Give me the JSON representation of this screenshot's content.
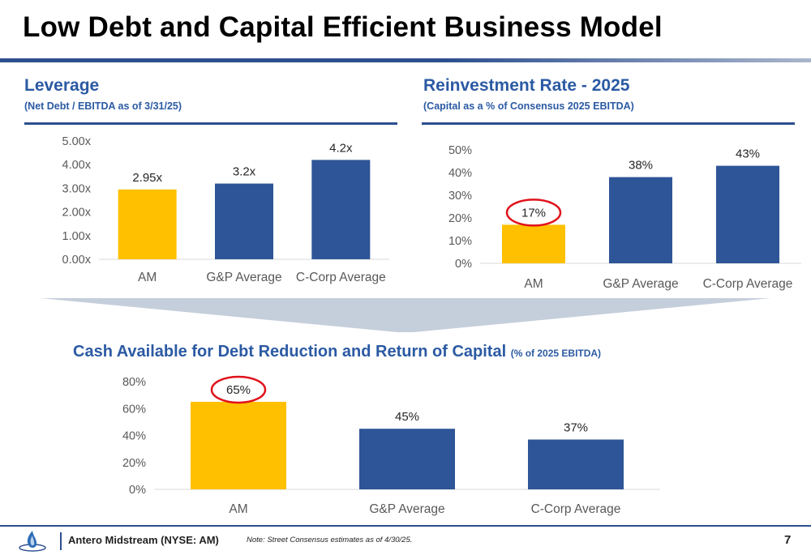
{
  "title": "Low Debt and Capital Efficient Business Model",
  "chart_data": [
    {
      "type": "bar",
      "title": "Leverage",
      "subtitle": "(Net Debt / EBITDA as of 3/31/25)",
      "categories": [
        "AM",
        "G&P Average",
        "C-Corp Average"
      ],
      "values": [
        2.95,
        3.2,
        4.2
      ],
      "data_labels": [
        "2.95x",
        "3.2x",
        "4.2x"
      ],
      "yticks": [
        "0.00x",
        "1.00x",
        "2.00x",
        "3.00x",
        "4.00x",
        "5.00x"
      ],
      "ylim": [
        0,
        5
      ],
      "highlight_index": -1,
      "grid": false
    },
    {
      "type": "bar",
      "title": "Reinvestment Rate - 2025",
      "subtitle": "(Capital as a % of Consensus 2025 EBITDA)",
      "categories": [
        "AM",
        "G&P Average",
        "C-Corp Average"
      ],
      "values": [
        17,
        38,
        43
      ],
      "data_labels": [
        "17%",
        "38%",
        "43%"
      ],
      "yticks": [
        "0%",
        "10%",
        "20%",
        "30%",
        "40%",
        "50%"
      ],
      "ylim": [
        0,
        50
      ],
      "highlight_index": 0,
      "grid": false
    },
    {
      "type": "bar",
      "title": "Cash Available for Debt Reduction and Return of Capital",
      "subtitle": "(% of 2025 EBITDA)",
      "categories": [
        "AM",
        "G&P Average",
        "C-Corp Average"
      ],
      "values": [
        65,
        45,
        37
      ],
      "data_labels": [
        "65%",
        "45%",
        "37%"
      ],
      "yticks": [
        "0%",
        "20%",
        "40%",
        "60%",
        "80%"
      ],
      "ylim": [
        0,
        80
      ],
      "highlight_index": 0,
      "grid": false
    }
  ],
  "colors": {
    "am_bar": "#ffc000",
    "peer_bar": "#2e5597",
    "highlight_circle": "#e0121b",
    "title_blue": "#2b5aa3",
    "funnel": "#c5cedb"
  },
  "footer": {
    "company": "Antero Midstream (NYSE: AM)",
    "note": "Note: Street Consensus estimates as of 4/30/25.",
    "page": "7"
  }
}
